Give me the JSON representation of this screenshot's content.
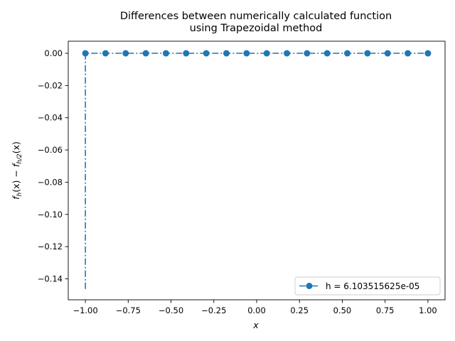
{
  "chart_data": {
    "type": "line",
    "title_line1": "Differences between numerically calculated function",
    "title_line2": "using Trapezoidal method",
    "xlabel": "x",
    "ylabel": "f_h(x) − f_{h/2}(x)",
    "ylabel_parts": {
      "f1": "f",
      "s1": "h",
      "mid": "(x) − ",
      "f2": "f",
      "s2": "h/2",
      "end": "(x)"
    },
    "xlim": [
      -1.1,
      1.1
    ],
    "ylim": [
      -0.153,
      0.0075
    ],
    "xticks": [
      {
        "v": -1.0,
        "label": "−1.00"
      },
      {
        "v": -0.75,
        "label": "−0.75"
      },
      {
        "v": -0.5,
        "label": "−0.50"
      },
      {
        "v": -0.25,
        "label": "−0.25"
      },
      {
        "v": 0.0,
        "label": "0.00"
      },
      {
        "v": 0.25,
        "label": "0.25"
      },
      {
        "v": 0.5,
        "label": "0.50"
      },
      {
        "v": 0.75,
        "label": "0.75"
      },
      {
        "v": 1.0,
        "label": "1.00"
      }
    ],
    "yticks": [
      {
        "v": 0.0,
        "label": "0.00"
      },
      {
        "v": -0.02,
        "label": "−0.02"
      },
      {
        "v": -0.04,
        "label": "−0.04"
      },
      {
        "v": -0.06,
        "label": "−0.06"
      },
      {
        "v": -0.08,
        "label": "−0.08"
      },
      {
        "v": -0.1,
        "label": "−0.10"
      },
      {
        "v": -0.12,
        "label": "−0.12"
      },
      {
        "v": -0.14,
        "label": "−0.14"
      }
    ],
    "series": [
      {
        "name": "h = 6.103515625e-05",
        "color": "#1f77b4",
        "line_style": "dashdot",
        "line_x": [
          -1.0,
          -1.0,
          -1.0,
          1.0
        ],
        "line_y": [
          -0.1463,
          -0.1463,
          0.0,
          0.0
        ],
        "markers_x": [
          -1.0,
          -0.8824,
          -0.7647,
          -0.6471,
          -0.5294,
          -0.4118,
          -0.2941,
          -0.1765,
          -0.0588,
          0.0588,
          0.1765,
          0.2941,
          0.4118,
          0.5294,
          0.6471,
          0.7647,
          0.8824,
          1.0
        ],
        "markers_y": [
          0.0,
          0.0,
          0.0,
          0.0,
          0.0,
          0.0,
          0.0,
          0.0,
          0.0,
          0.0,
          0.0,
          0.0,
          0.0,
          0.0,
          0.0,
          0.0,
          0.0,
          0.0
        ]
      }
    ],
    "legend_position": "lower-right",
    "grid": false
  }
}
